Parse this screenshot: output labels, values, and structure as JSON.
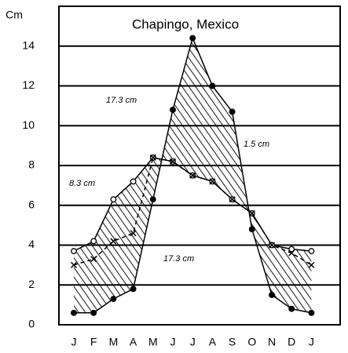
{
  "chart_data": {
    "type": "line",
    "title": "Chapingo, Mexico",
    "y_label": "Cm",
    "categories": [
      "J",
      "F",
      "M",
      "A",
      "M",
      "J",
      "J",
      "A",
      "S",
      "O",
      "N",
      "D",
      "J"
    ],
    "series": [
      {
        "color": "#000000",
        "marker": "filled",
        "values": [
          0.6,
          0.6,
          1.3,
          1.8,
          6.3,
          10.8,
          14.4,
          12.0,
          10.7,
          4.8,
          1.5,
          0.8,
          0.6
        ]
      },
      {
        "color": "#000000",
        "marker": "open",
        "values": [
          3.7,
          4.2,
          6.3,
          7.2,
          8.4,
          8.2,
          7.5,
          7.2,
          6.3,
          5.6,
          4.0,
          3.8,
          3.7
        ]
      },
      {
        "color": "#000000",
        "marker": "x",
        "values": [
          3.0,
          3.3,
          4.2,
          4.6,
          8.4,
          8.2,
          7.5,
          7.2,
          6.3,
          5.6,
          4.0,
          3.6,
          3.0
        ]
      }
    ],
    "annotations": [
      "17.3 cm",
      "8.3 cm",
      "1.5 cm",
      "17.3 cm"
    ],
    "ylim": [
      0,
      16
    ],
    "yticks": [
      0,
      2,
      4,
      6,
      8,
      10,
      12,
      14
    ],
    "grid": true
  }
}
